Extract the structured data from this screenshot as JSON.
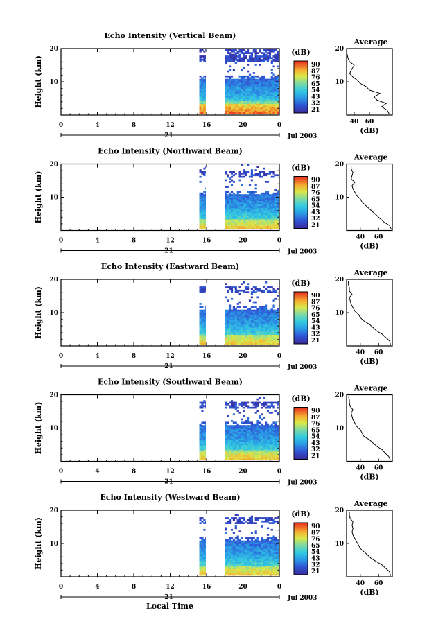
{
  "xlabel": "Local Time",
  "colorbar": {
    "unit": "(dB)",
    "levels": [
      "90",
      "87",
      "76",
      "65",
      "54",
      "43",
      "32",
      "21"
    ]
  },
  "avg_title": "Average",
  "avg_xlabel": "(dB)",
  "chart_data": [
    {
      "type": "heatmap",
      "title": "Echo Intensity (Vertical Beam)",
      "ylabel": "Height (km)",
      "x_ticks": [
        "0",
        "4",
        "8",
        "12",
        "16",
        "20",
        "0"
      ],
      "y_ticks": [
        "20",
        "10"
      ],
      "xlim": [
        0,
        24
      ],
      "ylim": [
        0,
        20
      ],
      "date_day": "21",
      "date_month": "Jul 2003",
      "data_spans": [
        [
          15.2,
          15.9
        ],
        [
          18.0,
          24.0
        ]
      ],
      "value_range": [
        21,
        90
      ],
      "average": {
        "xlim": [
          30,
          90
        ],
        "x_ticks": [
          "40",
          "60"
        ],
        "ylim": [
          0,
          20
        ],
        "y_ticks": [
          "20",
          "10"
        ],
        "profile": [
          [
            86,
            0.3
          ],
          [
            83,
            1.5
          ],
          [
            76,
            2.5
          ],
          [
            82,
            3.5
          ],
          [
            70,
            4.5
          ],
          [
            66,
            5.5
          ],
          [
            74,
            6.5
          ],
          [
            60,
            7.5
          ],
          [
            56,
            8.5
          ],
          [
            48,
            9.5
          ],
          [
            44,
            10.5
          ],
          [
            38,
            11.5
          ],
          [
            34,
            12.5
          ],
          [
            36,
            13.5
          ],
          [
            40,
            15
          ],
          [
            34,
            16
          ],
          [
            32,
            17
          ],
          [
            31,
            18
          ],
          [
            30,
            19
          ]
        ]
      }
    },
    {
      "type": "heatmap",
      "title": "Echo Intensity (Northward Beam)",
      "ylabel": "Height (km)",
      "x_ticks": [
        "0",
        "4",
        "8",
        "12",
        "16",
        "20",
        "0"
      ],
      "y_ticks": [
        "20",
        "10"
      ],
      "xlim": [
        0,
        24
      ],
      "ylim": [
        0,
        20
      ],
      "date_day": "21",
      "date_month": "Jul 2003",
      "data_spans": [
        [
          15.2,
          15.9
        ],
        [
          18.0,
          24.0
        ]
      ],
      "value_range": [
        21,
        90
      ],
      "average": {
        "xlim": [
          25,
          75
        ],
        "x_ticks": [
          "40",
          "60"
        ],
        "ylim": [
          0,
          20
        ],
        "y_ticks": [
          "20",
          "10"
        ],
        "profile": [
          [
            74,
            0.3
          ],
          [
            72,
            1.5
          ],
          [
            66,
            2.5
          ],
          [
            62,
            3.5
          ],
          [
            58,
            4.5
          ],
          [
            54,
            5.5
          ],
          [
            50,
            6.5
          ],
          [
            46,
            7.5
          ],
          [
            42,
            8.5
          ],
          [
            40,
            9.5
          ],
          [
            36,
            10.5
          ],
          [
            34,
            11.5
          ],
          [
            32,
            12.5
          ],
          [
            31,
            13.5
          ],
          [
            34,
            14.5
          ],
          [
            30,
            15.5
          ],
          [
            31,
            16.5
          ],
          [
            32,
            17.5
          ],
          [
            30,
            18.5
          ],
          [
            30,
            19.5
          ]
        ]
      }
    },
    {
      "type": "heatmap",
      "title": "Echo Intensity (Eastward Beam)",
      "ylabel": "Height (km)",
      "x_ticks": [
        "0",
        "4",
        "8",
        "12",
        "16",
        "20",
        "0"
      ],
      "y_ticks": [
        "20",
        "10"
      ],
      "xlim": [
        0,
        24
      ],
      "ylim": [
        0,
        20
      ],
      "date_day": "21",
      "date_month": "Jul 2003",
      "data_spans": [
        [
          15.2,
          15.9
        ],
        [
          18.0,
          24.0
        ]
      ],
      "value_range": [
        21,
        90
      ],
      "average": {
        "xlim": [
          25,
          75
        ],
        "x_ticks": [
          "40",
          "60"
        ],
        "ylim": [
          0,
          20
        ],
        "y_ticks": [
          "20",
          "10"
        ],
        "profile": [
          [
            73,
            0.3
          ],
          [
            72,
            1.5
          ],
          [
            68,
            2.5
          ],
          [
            64,
            3.5
          ],
          [
            58,
            4.5
          ],
          [
            54,
            5.5
          ],
          [
            50,
            6.5
          ],
          [
            44,
            7.5
          ],
          [
            40,
            8.5
          ],
          [
            38,
            9.5
          ],
          [
            34,
            10.5
          ],
          [
            32,
            11.5
          ],
          [
            30,
            12.5
          ],
          [
            29,
            13.5
          ],
          [
            28,
            14.5
          ],
          [
            31,
            15.5
          ],
          [
            28,
            16.5
          ],
          [
            28,
            17.5
          ],
          [
            27,
            18.5
          ],
          [
            27,
            19.5
          ]
        ]
      }
    },
    {
      "type": "heatmap",
      "title": "Echo Intensity (Southward Beam)",
      "ylabel": "Height (km)",
      "x_ticks": [
        "0",
        "4",
        "8",
        "12",
        "16",
        "20",
        "0"
      ],
      "y_ticks": [
        "20",
        "10"
      ],
      "xlim": [
        0,
        24
      ],
      "ylim": [
        0,
        20
      ],
      "date_day": "21",
      "date_month": "Jul 2003",
      "data_spans": [
        [
          15.2,
          15.9
        ],
        [
          18.0,
          24.0
        ]
      ],
      "value_range": [
        21,
        90
      ],
      "average": {
        "xlim": [
          25,
          75
        ],
        "x_ticks": [
          "40",
          "60"
        ],
        "ylim": [
          0,
          20
        ],
        "y_ticks": [
          "20",
          "10"
        ],
        "profile": [
          [
            73,
            0.3
          ],
          [
            71,
            1.5
          ],
          [
            67,
            2.5
          ],
          [
            64,
            3.5
          ],
          [
            58,
            4.5
          ],
          [
            54,
            5.5
          ],
          [
            50,
            6.5
          ],
          [
            44,
            7.5
          ],
          [
            42,
            8.5
          ],
          [
            40,
            9.5
          ],
          [
            36,
            10.5
          ],
          [
            34,
            11.5
          ],
          [
            32,
            12.5
          ],
          [
            31,
            13.5
          ],
          [
            30,
            14.5
          ],
          [
            32,
            15.5
          ],
          [
            29,
            16.5
          ],
          [
            28,
            17.5
          ],
          [
            28,
            18.5
          ],
          [
            27,
            19.5
          ]
        ]
      }
    },
    {
      "type": "heatmap",
      "title": "Echo Intensity (Westward Beam)",
      "ylabel": "Height (km)",
      "x_ticks": [
        "0",
        "4",
        "8",
        "12",
        "16",
        "20",
        "0"
      ],
      "y_ticks": [
        "20",
        "10"
      ],
      "xlim": [
        0,
        24
      ],
      "ylim": [
        0,
        20
      ],
      "date_day": "21",
      "date_month": "Jul 2003",
      "data_spans": [
        [
          15.2,
          15.9
        ],
        [
          18.0,
          24.0
        ]
      ],
      "value_range": [
        21,
        90
      ],
      "average": {
        "xlim": [
          25,
          75
        ],
        "x_ticks": [
          "40",
          "60"
        ],
        "ylim": [
          0,
          20
        ],
        "y_ticks": [
          "20",
          "10"
        ],
        "profile": [
          [
            73,
            0.3
          ],
          [
            72,
            1.5
          ],
          [
            68,
            2.5
          ],
          [
            64,
            3.5
          ],
          [
            58,
            4.5
          ],
          [
            52,
            5.5
          ],
          [
            48,
            6.5
          ],
          [
            44,
            7.5
          ],
          [
            40,
            8.5
          ],
          [
            38,
            9.5
          ],
          [
            36,
            10.5
          ],
          [
            34,
            11.5
          ],
          [
            32,
            12.5
          ],
          [
            31,
            13.5
          ],
          [
            32,
            14.5
          ],
          [
            31,
            15.5
          ],
          [
            32,
            16.5
          ],
          [
            29,
            17.5
          ],
          [
            28,
            18.5
          ],
          [
            28,
            19.5
          ]
        ]
      }
    }
  ]
}
